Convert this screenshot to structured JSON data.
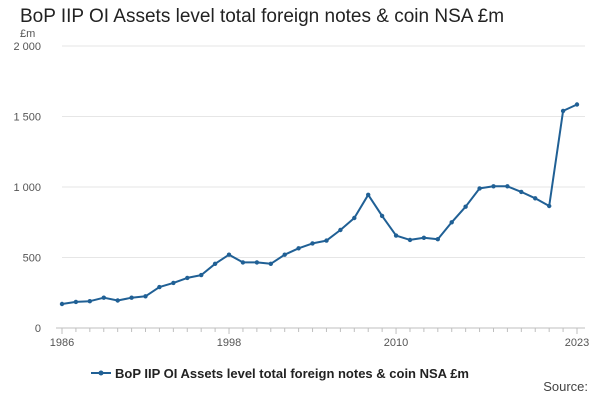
{
  "chart_data": {
    "type": "line",
    "title": "BoP IIP OI Assets level total foreign notes & coin NSA £m",
    "ylabel": "£m",
    "xlabel": "",
    "ylim": [
      0,
      2000
    ],
    "xlim": [
      1986,
      2023
    ],
    "y_ticks": [
      {
        "value": 0,
        "label": "0"
      },
      {
        "value": 500,
        "label": "500"
      },
      {
        "value": 1000,
        "label": "1 000"
      },
      {
        "value": 1500,
        "label": "1 500"
      },
      {
        "value": 2000,
        "label": "2 000"
      }
    ],
    "x_ticks": [
      {
        "value": 1986,
        "label": "1986"
      },
      {
        "value": 1998,
        "label": "1998"
      },
      {
        "value": 2010,
        "label": "2010"
      },
      {
        "value": 2023,
        "label": "2023"
      }
    ],
    "grid": "horizontal",
    "legend_position": "bottom",
    "series": [
      {
        "name": "BoP IIP OI Assets level total foreign notes & coin NSA £m",
        "color": "#206095",
        "x": [
          1986,
          1987,
          1988,
          1989,
          1990,
          1991,
          1992,
          1993,
          1994,
          1995,
          1996,
          1997,
          1998,
          1999,
          2000,
          2001,
          2002,
          2003,
          2004,
          2005,
          2006,
          2007,
          2008,
          2009,
          2010,
          2011,
          2012,
          2013,
          2014,
          2015,
          2016,
          2017,
          2018,
          2019,
          2020,
          2021,
          2022,
          2023
        ],
        "values": [
          170,
          185,
          190,
          215,
          195,
          215,
          225,
          290,
          320,
          355,
          375,
          455,
          520,
          465,
          465,
          455,
          520,
          565,
          600,
          620,
          695,
          780,
          945,
          795,
          655,
          625,
          640,
          630,
          750,
          860,
          990,
          1005,
          1005,
          965,
          920,
          865,
          1540,
          1585
        ]
      }
    ]
  },
  "source_label": "Source:"
}
